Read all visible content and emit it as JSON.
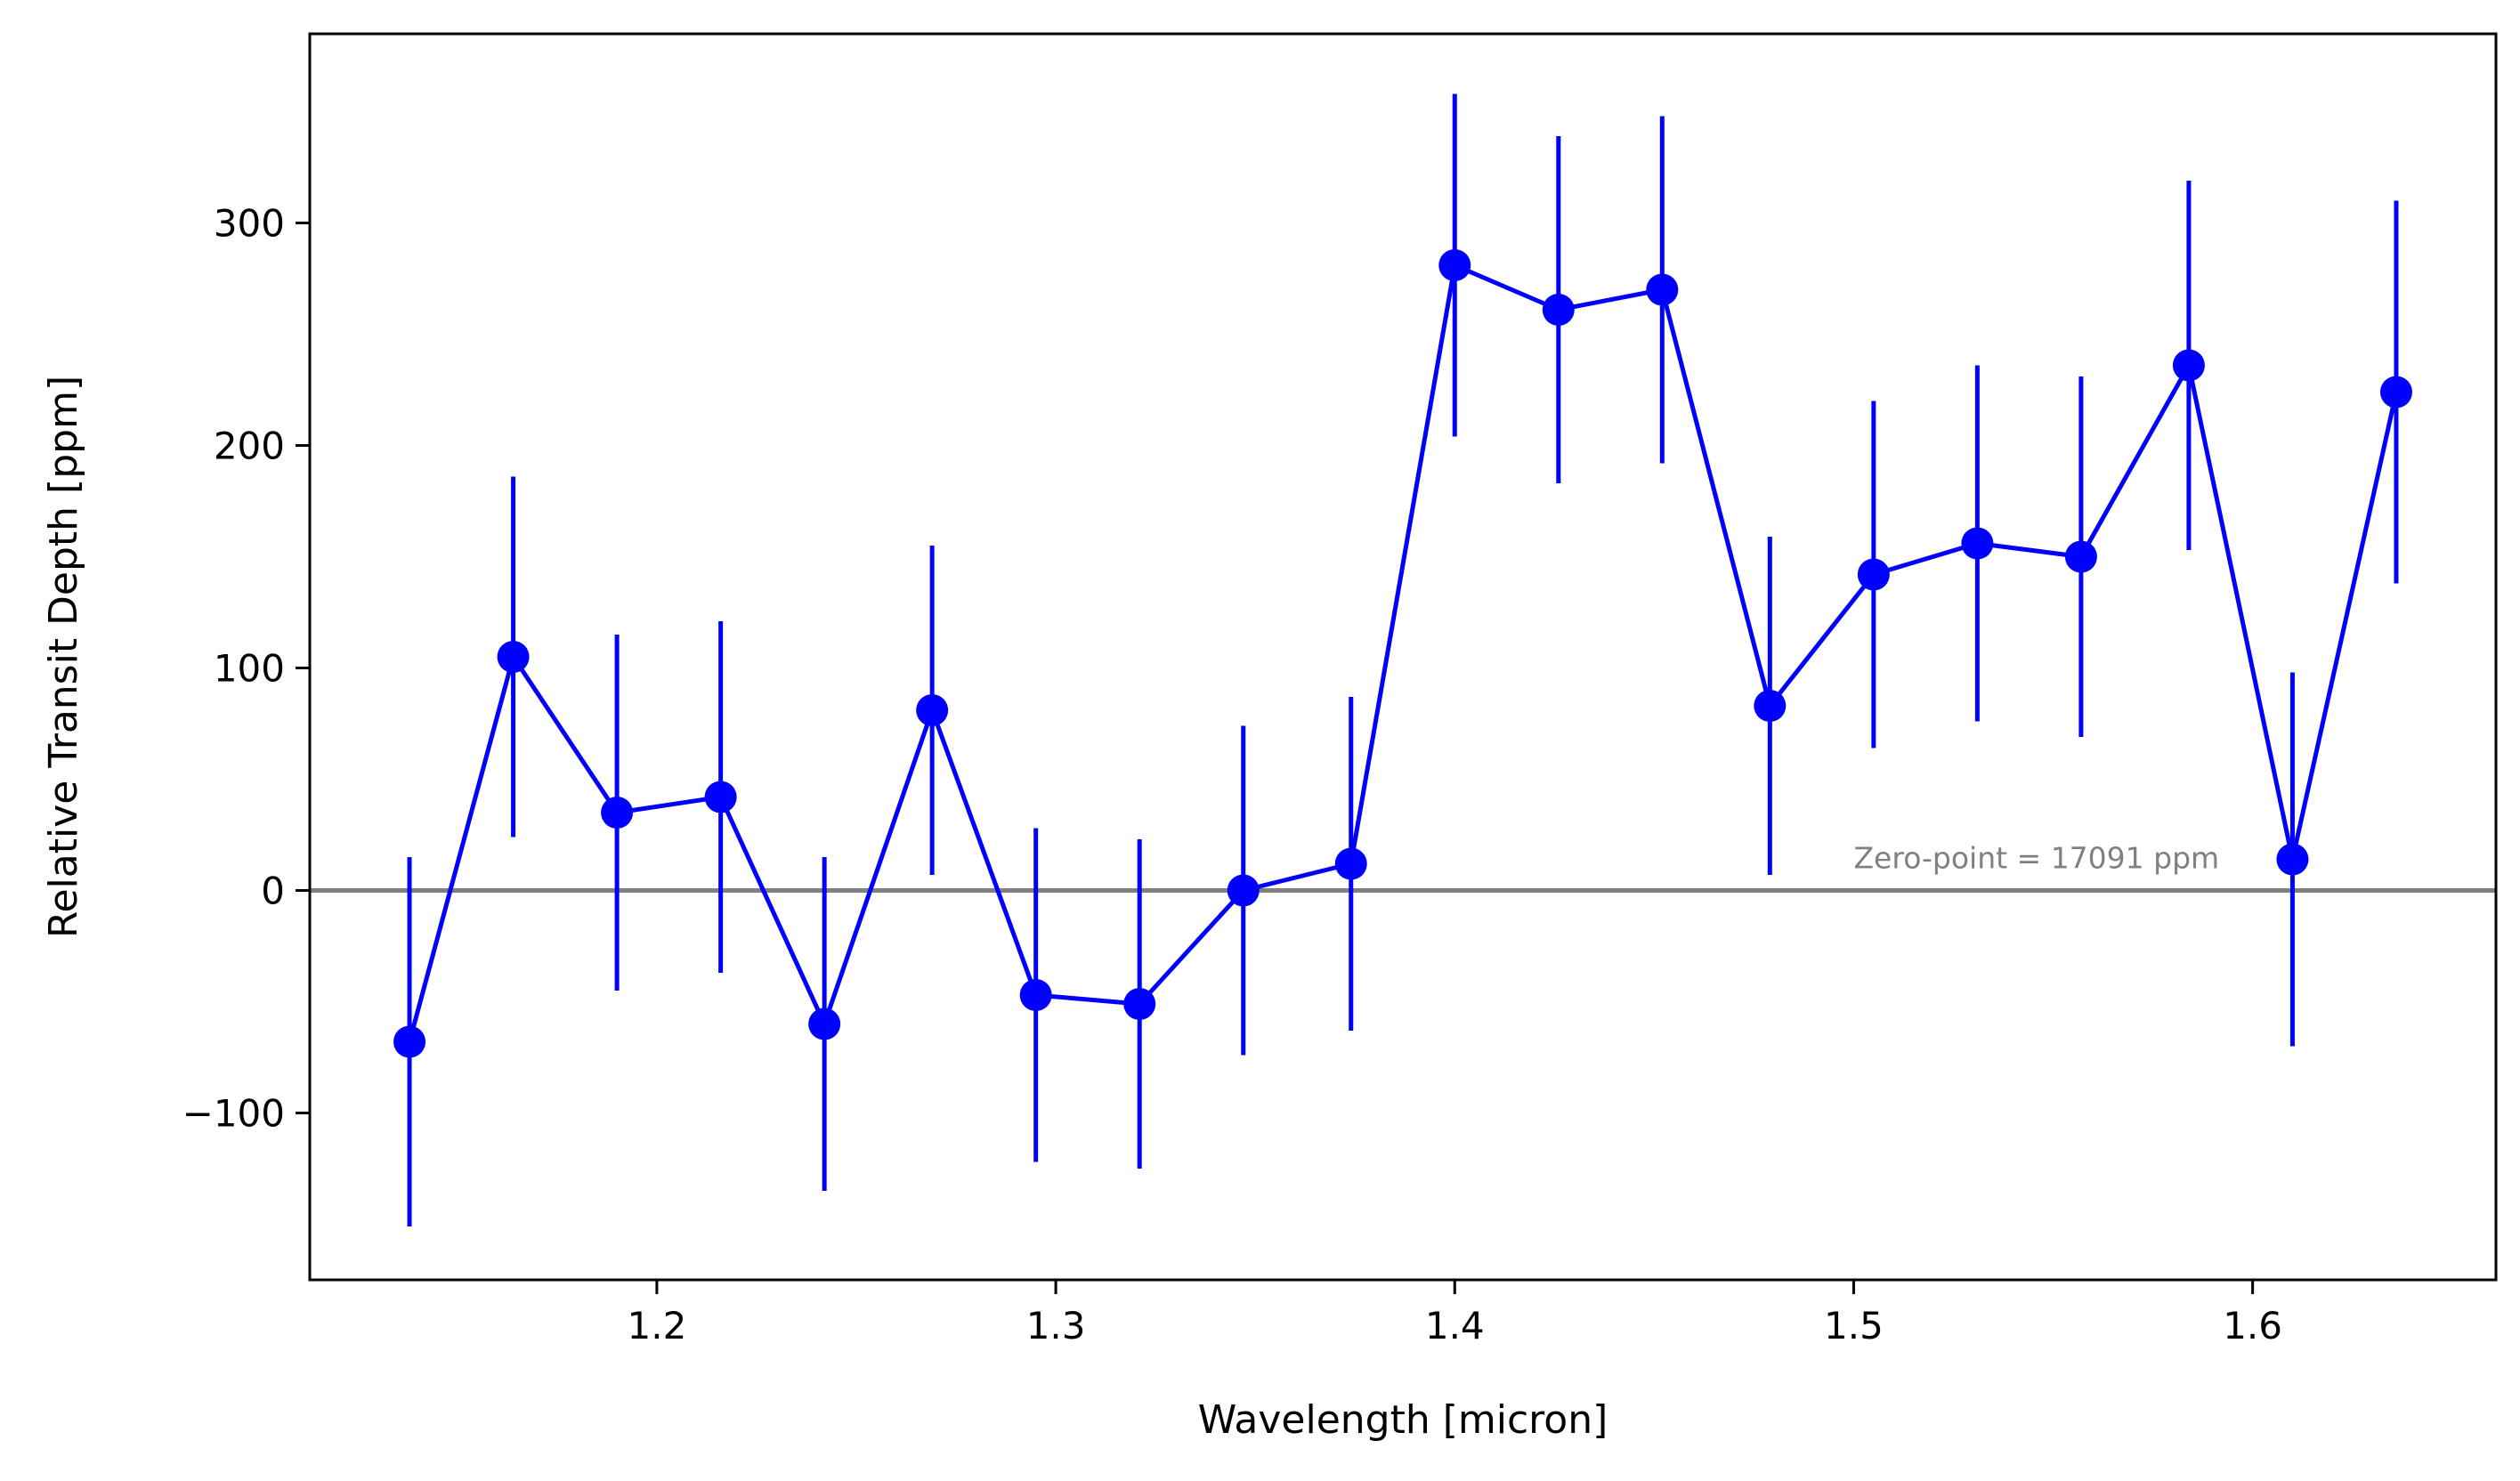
{
  "chart_data": {
    "type": "line",
    "title": "",
    "xlabel": "Wavelength [micron]",
    "ylabel": "Relative Transit Depth [ppm]",
    "xlim": [
      1.113,
      1.661
    ],
    "ylim": [
      -175,
      385
    ],
    "x_ticks": [
      1.2,
      1.3,
      1.4,
      1.5,
      1.6
    ],
    "x_tick_labels": [
      "1.2",
      "1.3",
      "1.4",
      "1.5",
      "1.6"
    ],
    "y_ticks": [
      -100,
      0,
      100,
      200,
      300
    ],
    "y_tick_labels": [
      "−100",
      "0",
      "100",
      "200",
      "300"
    ],
    "grid": false,
    "reference_line": {
      "y": 0,
      "color": "#808080"
    },
    "annotation": {
      "text": "Zero-point = 17091 ppm",
      "x": 1.5,
      "y": 10,
      "color": "#808080"
    },
    "series": [
      {
        "color": "#0000ff",
        "marker": "circle",
        "x": [
          1.138,
          1.164,
          1.19,
          1.216,
          1.242,
          1.269,
          1.295,
          1.321,
          1.347,
          1.374,
          1.4,
          1.426,
          1.452,
          1.479,
          1.505,
          1.531,
          1.557,
          1.584,
          1.61,
          1.636
        ],
        "y": [
          -68,
          105,
          35,
          42,
          -60,
          81,
          -47,
          -51,
          0,
          12,
          281,
          261,
          270,
          83,
          142,
          156,
          150,
          236,
          14,
          224
        ],
        "yerr": [
          83,
          81,
          80,
          79,
          75,
          74,
          75,
          74,
          74,
          75,
          77,
          78,
          78,
          76,
          78,
          80,
          81,
          83,
          84,
          86
        ]
      }
    ]
  }
}
